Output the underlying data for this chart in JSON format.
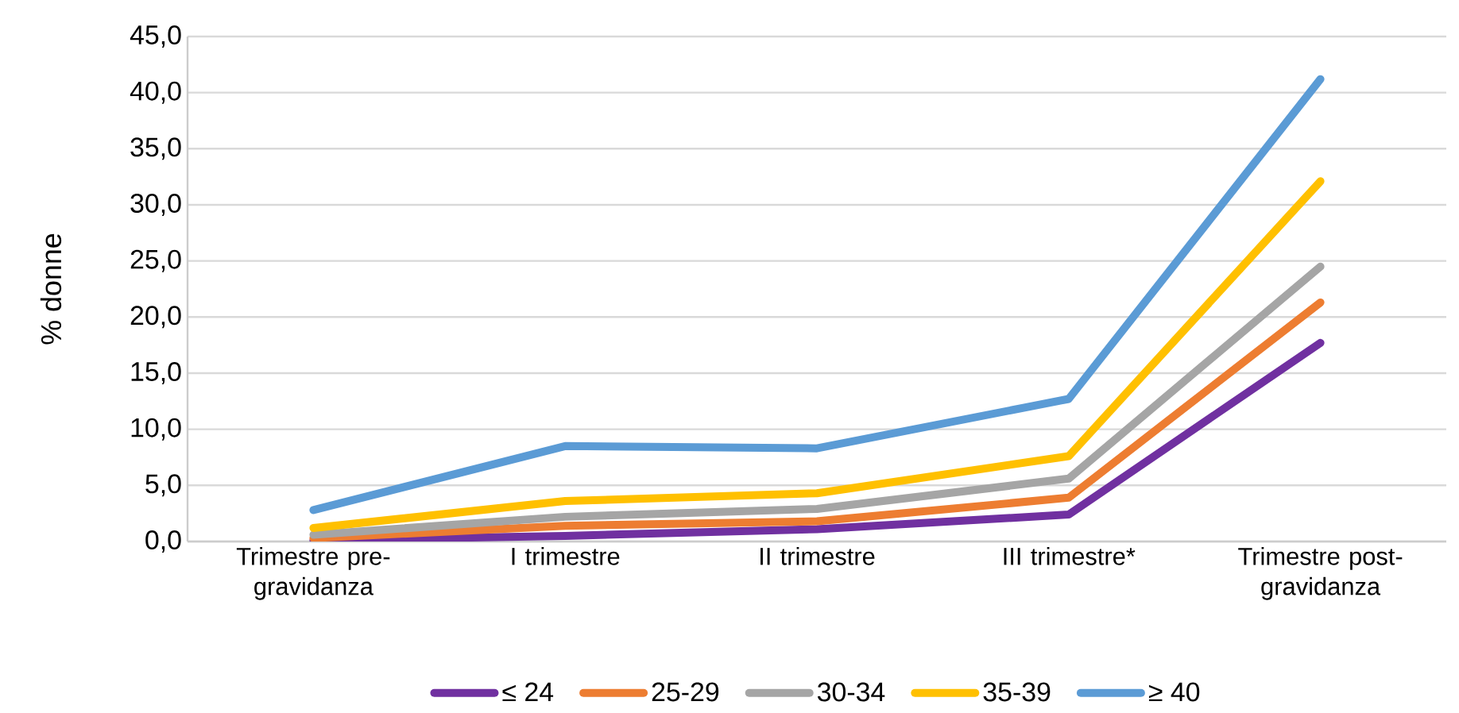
{
  "chart_data": {
    "type": "line",
    "ylabel": "% donne",
    "categories": [
      "Trimestre pre-gravidanza",
      "I trimestre",
      "II trimestre",
      "III trimestre*",
      "Trimestre post-gravidanza"
    ],
    "series": [
      {
        "name": "≤ 24",
        "color": "#7030a0",
        "values": [
          0.1,
          0.5,
          1.1,
          2.4,
          17.7
        ]
      },
      {
        "name": "25-29",
        "color": "#ed7d31",
        "values": [
          0.3,
          1.4,
          1.8,
          3.9,
          21.3
        ]
      },
      {
        "name": "30-34",
        "color": "#a5a5a5",
        "values": [
          0.6,
          2.2,
          2.9,
          5.6,
          24.5
        ]
      },
      {
        "name": "35-39",
        "color": "#ffc000",
        "values": [
          1.2,
          3.6,
          4.3,
          7.6,
          32.1
        ]
      },
      {
        "name": "≥ 40",
        "color": "#5b9bd5",
        "values": [
          2.8,
          8.5,
          8.3,
          12.7,
          41.2
        ]
      }
    ],
    "ylim": [
      0,
      45
    ],
    "yticks": [
      {
        "value": 0,
        "label": "0,0"
      },
      {
        "value": 5,
        "label": "5,0"
      },
      {
        "value": 10,
        "label": "10,0"
      },
      {
        "value": 15,
        "label": "15,0"
      },
      {
        "value": 20,
        "label": "20,0"
      },
      {
        "value": 25,
        "label": "25,0"
      },
      {
        "value": 30,
        "label": "30,0"
      },
      {
        "value": 35,
        "label": "35,0"
      },
      {
        "value": 40,
        "label": "40,0"
      },
      {
        "value": 45,
        "label": "45,0"
      }
    ],
    "grid": "y",
    "legend": "bottom",
    "marker": "none",
    "line_style": "solid"
  }
}
